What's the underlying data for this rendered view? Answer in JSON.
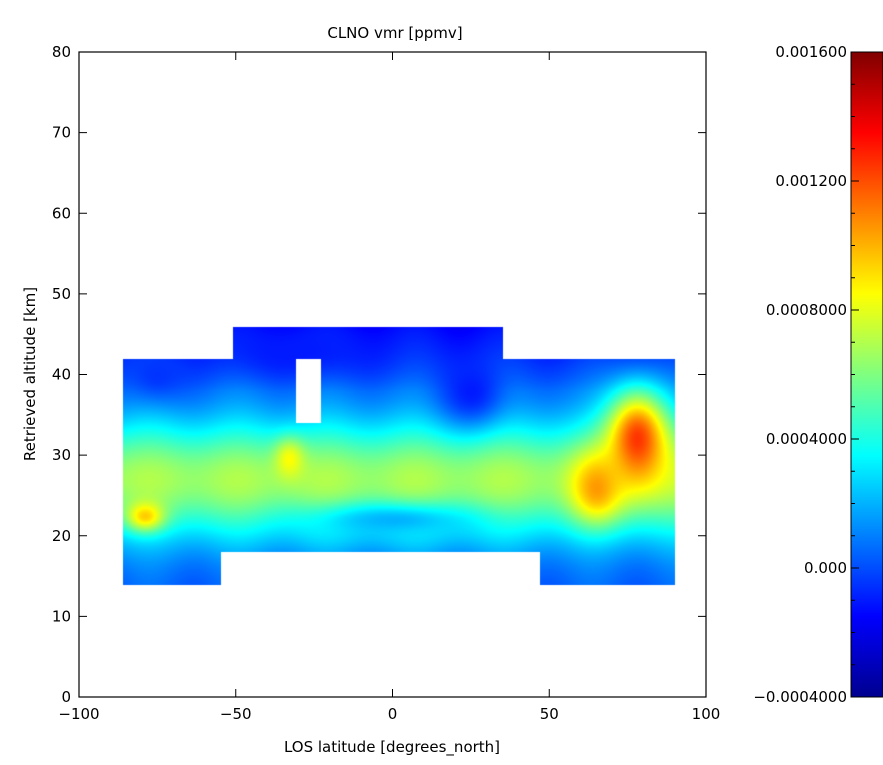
{
  "chart_data": {
    "type": "heatmap",
    "title": "CLNO vmr [ppmv]",
    "xlabel": "LOS latitude [degrees_north]",
    "ylabel": "Retrieved altitude [km]",
    "xlim": [
      -100,
      100
    ],
    "ylim": [
      0,
      80
    ],
    "x_ticks": [
      -100,
      -50,
      0,
      50,
      100
    ],
    "x_tick_labels": [
      "−100",
      "−50",
      "0",
      "50",
      "100"
    ],
    "y_ticks": [
      0,
      10,
      20,
      30,
      40,
      50,
      60,
      70,
      80
    ],
    "y_tick_labels": [
      "0",
      "10",
      "20",
      "30",
      "40",
      "50",
      "60",
      "70",
      "80"
    ],
    "colorbar": {
      "range": [
        -0.0004,
        0.0016
      ],
      "ticks": [
        -0.0004,
        0.0,
        0.0004,
        0.0008,
        0.0012,
        0.0016
      ],
      "tick_labels": [
        "−0.0004000",
        "0.000",
        "0.0004000",
        "0.0008000",
        "0.001200",
        "0.001600"
      ],
      "colormap": "jet"
    },
    "grid": false,
    "data_regions": [
      {
        "lat": [
          -86,
          -55
        ],
        "alt": [
          14,
          42
        ]
      },
      {
        "lat": [
          -55,
          -51
        ],
        "alt": [
          18,
          42
        ]
      },
      {
        "lat": [
          -51,
          35
        ],
        "alt": [
          18,
          46
        ]
      },
      {
        "lat": [
          35,
          47
        ],
        "alt": [
          18,
          42
        ]
      },
      {
        "lat": [
          47,
          90
        ],
        "alt": [
          14,
          42
        ]
      }
    ],
    "missing_regions": [
      {
        "lat": [
          -31,
          -23
        ],
        "alt": [
          34,
          42
        ]
      }
    ],
    "features": [
      {
        "lat": -79,
        "alt": 22.5,
        "value": 0.00095,
        "sx": 6,
        "sy": 1.8
      },
      {
        "lat": -33,
        "alt": 29.5,
        "value": 0.00085,
        "sx": 5,
        "sy": 2.5
      },
      {
        "lat": 78,
        "alt": 32,
        "value": 0.00125,
        "sx": 10,
        "sy": 6
      },
      {
        "lat": 65,
        "alt": 26,
        "value": 0.00105,
        "sx": 8,
        "sy": 4
      },
      {
        "lat": 0,
        "alt": 22,
        "value": 0.0002,
        "sx": 25,
        "sy": 2
      },
      {
        "lat": -30,
        "alt": 43,
        "value": -0.0001,
        "sx": 25,
        "sy": 3
      },
      {
        "lat": 25,
        "alt": 38,
        "value": -0.0001,
        "sx": 10,
        "sy": 4
      },
      {
        "lat": -75,
        "alt": 40,
        "value": -5e-05,
        "sx": 10,
        "sy": 3
      }
    ]
  }
}
